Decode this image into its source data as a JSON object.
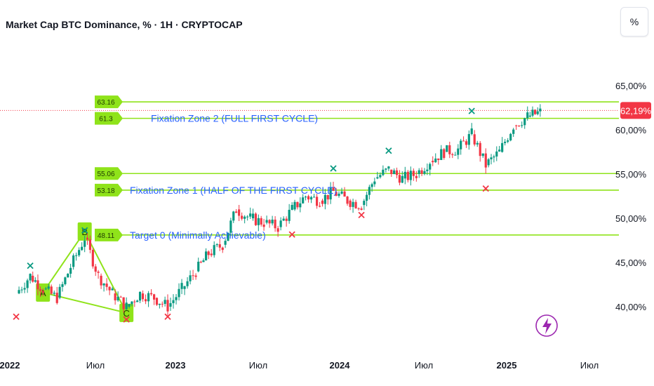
{
  "header": {
    "title": "Market Cap BTC Dominance, % · 1H · CRYPTOCAP",
    "percent_button": "%"
  },
  "price_tag": "62,19%",
  "colors": {
    "up": "#089981",
    "down": "#f23645",
    "level": "#8fe31a",
    "text_blue": "#2962ff",
    "pattern": "#8fe31a",
    "price_tag": "#f23645"
  },
  "icons": [
    "lightning-icon"
  ],
  "chart_data": {
    "type": "line",
    "title": "Market Cap BTC Dominance, % · 1H · CRYPTOCAP",
    "x_ticks": [
      "2022",
      "Июл",
      "2023",
      "Июл",
      "2024",
      "Июл",
      "2025",
      "Июл"
    ],
    "y_ticks": [
      "65,00%",
      "60,00%",
      "55,00%",
      "50,00%",
      "45,00%",
      "40,00%"
    ],
    "ylim": [
      37.5,
      67.5
    ],
    "y_scale": "linear",
    "grid": false,
    "last_value": 62.19,
    "levels": [
      {
        "value": 63.16,
        "tag": "63.16"
      },
      {
        "value": 61.3,
        "tag": "61.3"
      },
      {
        "value": 55.06,
        "tag": "55.06"
      },
      {
        "value": 53.18,
        "tag": "53.18"
      },
      {
        "value": 48.11,
        "tag": "48.11"
      }
    ],
    "annotations": [
      {
        "text": "Fixation Zone 2 (FULL FIRST CYCLE)",
        "level": 61.3
      },
      {
        "text": "Fixation Zone 1 (HALF OF THE FIRST CYCLE)",
        "level": 53.18
      },
      {
        "text": "Target 0 (Minimally Achievable)",
        "level": 48.11
      }
    ],
    "pattern_points": [
      {
        "label": "A",
        "date": "2022-03",
        "value": 41.6
      },
      {
        "label": "B",
        "date": "2022-06",
        "value": 48.5
      },
      {
        "label": "C",
        "date": "2022-09",
        "value": 39.3
      }
    ],
    "series": [
      {
        "x": [
          "2022-01",
          "2022-02",
          "2022-03",
          "2022-04",
          "2022-05",
          "2022-06",
          "2022-07",
          "2022-08",
          "2022-09",
          "2022-10",
          "2022-11",
          "2022-12",
          "2023-01",
          "2023-02",
          "2023-03",
          "2023-04",
          "2023-05",
          "2023-06",
          "2023-07",
          "2023-08",
          "2023-09",
          "2023-10",
          "2023-11",
          "2023-12",
          "2024-01",
          "2024-02",
          "2024-03",
          "2024-04",
          "2024-05",
          "2024-06",
          "2024-07",
          "2024-08",
          "2024-09",
          "2024-10",
          "2024-11",
          "2024-12",
          "2025-01",
          "2025-02",
          "2025-03"
        ],
        "values": [
          41.5,
          43.5,
          42.0,
          41.0,
          44.5,
          47.8,
          43.5,
          41.5,
          40.0,
          41.5,
          41.0,
          40.0,
          42.0,
          44.0,
          46.0,
          47.0,
          51.0,
          50.0,
          49.5,
          49.0,
          51.0,
          52.5,
          52.0,
          53.0,
          52.0,
          51.5,
          54.5,
          55.5,
          54.5,
          55.0,
          56.5,
          57.5,
          57.8,
          59.5,
          56.0,
          57.5,
          60.5,
          61.5,
          62.0
        ]
      }
    ],
    "high_markers": [
      {
        "date": "2022-02",
        "value": 44.0
      },
      {
        "date": "2022-06",
        "value": 48.0
      },
      {
        "date": "2023-12",
        "value": 55.0
      },
      {
        "date": "2024-04",
        "value": 57.0
      },
      {
        "date": "2024-10",
        "value": 61.5
      }
    ],
    "low_markers": [
      {
        "date": "2022-01",
        "value": 39.5
      },
      {
        "date": "2022-09",
        "value": 39.2
      },
      {
        "date": "2022-12",
        "value": 39.5
      },
      {
        "date": "2023-09",
        "value": 48.8
      },
      {
        "date": "2024-02",
        "value": 51.0
      },
      {
        "date": "2024-11",
        "value": 54.0
      }
    ]
  }
}
